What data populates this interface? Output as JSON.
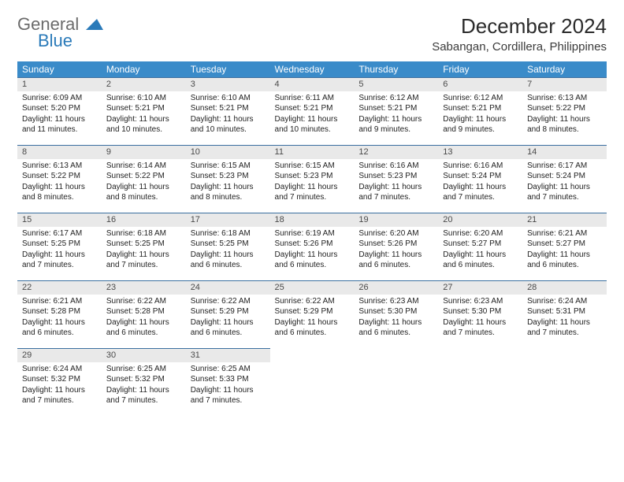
{
  "logo": {
    "general": "General",
    "blue": "Blue"
  },
  "title": "December 2024",
  "location": "Sabangan, Cordillera, Philippines",
  "colors": {
    "header_bg": "#3a8bc9",
    "header_text": "#ffffff",
    "daynum_bg": "#e9e9e9",
    "daynum_border": "#3a6fa0",
    "logo_gray": "#6b6b6b",
    "logo_blue": "#2a7ab9",
    "text": "#212121",
    "background": "#ffffff"
  },
  "fonts": {
    "title_size_pt": 20,
    "location_size_pt": 11,
    "header_size_pt": 9,
    "cell_size_pt": 7
  },
  "weekdays": [
    "Sunday",
    "Monday",
    "Tuesday",
    "Wednesday",
    "Thursday",
    "Friday",
    "Saturday"
  ],
  "days": [
    {
      "n": 1,
      "sunrise": "6:09 AM",
      "sunset": "5:20 PM",
      "daylight": "11 hours and 11 minutes."
    },
    {
      "n": 2,
      "sunrise": "6:10 AM",
      "sunset": "5:21 PM",
      "daylight": "11 hours and 10 minutes."
    },
    {
      "n": 3,
      "sunrise": "6:10 AM",
      "sunset": "5:21 PM",
      "daylight": "11 hours and 10 minutes."
    },
    {
      "n": 4,
      "sunrise": "6:11 AM",
      "sunset": "5:21 PM",
      "daylight": "11 hours and 10 minutes."
    },
    {
      "n": 5,
      "sunrise": "6:12 AM",
      "sunset": "5:21 PM",
      "daylight": "11 hours and 9 minutes."
    },
    {
      "n": 6,
      "sunrise": "6:12 AM",
      "sunset": "5:21 PM",
      "daylight": "11 hours and 9 minutes."
    },
    {
      "n": 7,
      "sunrise": "6:13 AM",
      "sunset": "5:22 PM",
      "daylight": "11 hours and 8 minutes."
    },
    {
      "n": 8,
      "sunrise": "6:13 AM",
      "sunset": "5:22 PM",
      "daylight": "11 hours and 8 minutes."
    },
    {
      "n": 9,
      "sunrise": "6:14 AM",
      "sunset": "5:22 PM",
      "daylight": "11 hours and 8 minutes."
    },
    {
      "n": 10,
      "sunrise": "6:15 AM",
      "sunset": "5:23 PM",
      "daylight": "11 hours and 8 minutes."
    },
    {
      "n": 11,
      "sunrise": "6:15 AM",
      "sunset": "5:23 PM",
      "daylight": "11 hours and 7 minutes."
    },
    {
      "n": 12,
      "sunrise": "6:16 AM",
      "sunset": "5:23 PM",
      "daylight": "11 hours and 7 minutes."
    },
    {
      "n": 13,
      "sunrise": "6:16 AM",
      "sunset": "5:24 PM",
      "daylight": "11 hours and 7 minutes."
    },
    {
      "n": 14,
      "sunrise": "6:17 AM",
      "sunset": "5:24 PM",
      "daylight": "11 hours and 7 minutes."
    },
    {
      "n": 15,
      "sunrise": "6:17 AM",
      "sunset": "5:25 PM",
      "daylight": "11 hours and 7 minutes."
    },
    {
      "n": 16,
      "sunrise": "6:18 AM",
      "sunset": "5:25 PM",
      "daylight": "11 hours and 7 minutes."
    },
    {
      "n": 17,
      "sunrise": "6:18 AM",
      "sunset": "5:25 PM",
      "daylight": "11 hours and 6 minutes."
    },
    {
      "n": 18,
      "sunrise": "6:19 AM",
      "sunset": "5:26 PM",
      "daylight": "11 hours and 6 minutes."
    },
    {
      "n": 19,
      "sunrise": "6:20 AM",
      "sunset": "5:26 PM",
      "daylight": "11 hours and 6 minutes."
    },
    {
      "n": 20,
      "sunrise": "6:20 AM",
      "sunset": "5:27 PM",
      "daylight": "11 hours and 6 minutes."
    },
    {
      "n": 21,
      "sunrise": "6:21 AM",
      "sunset": "5:27 PM",
      "daylight": "11 hours and 6 minutes."
    },
    {
      "n": 22,
      "sunrise": "6:21 AM",
      "sunset": "5:28 PM",
      "daylight": "11 hours and 6 minutes."
    },
    {
      "n": 23,
      "sunrise": "6:22 AM",
      "sunset": "5:28 PM",
      "daylight": "11 hours and 6 minutes."
    },
    {
      "n": 24,
      "sunrise": "6:22 AM",
      "sunset": "5:29 PM",
      "daylight": "11 hours and 6 minutes."
    },
    {
      "n": 25,
      "sunrise": "6:22 AM",
      "sunset": "5:29 PM",
      "daylight": "11 hours and 6 minutes."
    },
    {
      "n": 26,
      "sunrise": "6:23 AM",
      "sunset": "5:30 PM",
      "daylight": "11 hours and 6 minutes."
    },
    {
      "n": 27,
      "sunrise": "6:23 AM",
      "sunset": "5:30 PM",
      "daylight": "11 hours and 7 minutes."
    },
    {
      "n": 28,
      "sunrise": "6:24 AM",
      "sunset": "5:31 PM",
      "daylight": "11 hours and 7 minutes."
    },
    {
      "n": 29,
      "sunrise": "6:24 AM",
      "sunset": "5:32 PM",
      "daylight": "11 hours and 7 minutes."
    },
    {
      "n": 30,
      "sunrise": "6:25 AM",
      "sunset": "5:32 PM",
      "daylight": "11 hours and 7 minutes."
    },
    {
      "n": 31,
      "sunrise": "6:25 AM",
      "sunset": "5:33 PM",
      "daylight": "11 hours and 7 minutes."
    }
  ],
  "labels": {
    "sunrise": "Sunrise:",
    "sunset": "Sunset:",
    "daylight": "Daylight:"
  }
}
